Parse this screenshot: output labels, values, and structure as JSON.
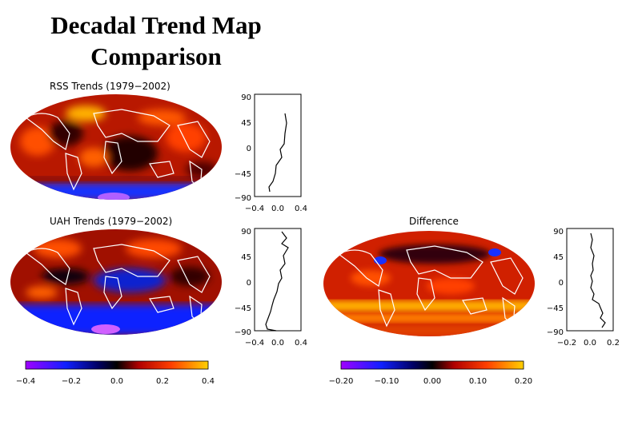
{
  "title": {
    "line1": "Decadal Trend Map",
    "line2": "Comparison"
  },
  "colors": {
    "negative": "#8000ff",
    "blue": "#1020ff",
    "zero": "#000000",
    "red": "#d01000",
    "orange": "#ff7000",
    "positive": "#ffd000"
  },
  "maps": [
    {
      "label": "RSS Trends (1979−2002)"
    },
    {
      "label": "UAH Trends (1979−2002)"
    },
    {
      "label": "Difference"
    }
  ],
  "profiles": [
    {
      "yticks": [
        "90",
        "45",
        "0",
        "−45",
        "−90"
      ],
      "xticks": [
        "−0.4",
        "0.0",
        "0.4"
      ]
    },
    {
      "yticks": [
        "90",
        "45",
        "0",
        "−45",
        "−90"
      ],
      "xticks": [
        "−0.4",
        "0.0",
        "0.4"
      ]
    },
    {
      "yticks": [
        "90",
        "45",
        "0",
        "−45",
        "−90"
      ],
      "xticks": [
        "−0.2",
        "0.0",
        "0.2"
      ]
    }
  ],
  "colorbars": [
    {
      "ticks": [
        "−0.4",
        "−0.2",
        "0.0",
        "0.2",
        "0.4"
      ]
    },
    {
      "ticks": [
        "−0.20",
        "−0.10",
        "0.00",
        "0.10",
        "0.20"
      ]
    }
  ]
}
